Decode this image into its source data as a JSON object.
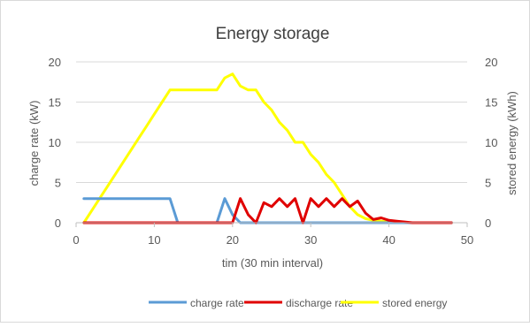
{
  "chart_data": {
    "type": "line",
    "title": "Energy storage",
    "xlabel": "tim (30 min interval)",
    "ylabel_left": "charge rate (kW)",
    "ylabel_right": "stored energy (kWh)",
    "xlim": [
      0,
      50
    ],
    "ylim_left": [
      0,
      20
    ],
    "ylim_right": [
      0,
      20
    ],
    "x_ticks": [
      0,
      10,
      20,
      30,
      40,
      50
    ],
    "y_ticks_left": [
      0,
      5,
      10,
      15,
      20
    ],
    "y_ticks_right": [
      0,
      5,
      10,
      15,
      20
    ],
    "grid": "horizontal",
    "legend_position": "bottom",
    "x": [
      1,
      2,
      3,
      4,
      5,
      6,
      7,
      8,
      9,
      10,
      11,
      12,
      13,
      14,
      15,
      16,
      17,
      18,
      19,
      20,
      21,
      22,
      23,
      24,
      25,
      26,
      27,
      28,
      29,
      30,
      31,
      32,
      33,
      34,
      35,
      36,
      37,
      38,
      39,
      40,
      41,
      42,
      43,
      44,
      45,
      46,
      47,
      48
    ],
    "series": [
      {
        "name": "charge rate",
        "axis": "left",
        "color": "#5B9BD5",
        "values": [
          3,
          3,
          3,
          3,
          3,
          3,
          3,
          3,
          3,
          3,
          3,
          3,
          0,
          0,
          0,
          0,
          0,
          0,
          3,
          1,
          0,
          0,
          0,
          0,
          0,
          0,
          0,
          0,
          0,
          0,
          0,
          0,
          0,
          0,
          0,
          0,
          0,
          0,
          0,
          0,
          0,
          0,
          0,
          0,
          0,
          0,
          0,
          0
        ]
      },
      {
        "name": "discharge rate",
        "axis": "left",
        "color": "#E00000",
        "values": [
          0,
          0,
          0,
          0,
          0,
          0,
          0,
          0,
          0,
          0,
          0,
          0,
          0,
          0,
          0,
          0,
          0,
          0,
          0,
          0,
          3,
          1,
          0,
          2.5,
          2,
          3,
          2,
          3,
          0,
          3,
          2,
          3,
          2,
          3,
          2,
          2.7,
          1.2,
          0.4,
          0.6,
          0.3,
          0.2,
          0.1,
          0,
          0,
          0,
          0,
          0,
          0
        ]
      },
      {
        "name": "stored energy",
        "axis": "right",
        "color": "#FFFF00",
        "values": [
          0,
          1.5,
          3,
          4.5,
          6,
          7.5,
          9,
          10.5,
          12,
          13.5,
          15,
          16.5,
          16.5,
          16.5,
          16.5,
          16.5,
          16.5,
          16.5,
          18,
          18.5,
          17,
          16.5,
          16.5,
          15,
          14,
          12.5,
          11.5,
          10,
          10,
          8.5,
          7.5,
          6,
          5,
          3.5,
          2,
          1,
          0.5,
          0.3,
          0.2,
          0.1,
          0.05,
          0,
          0,
          0,
          0,
          0,
          0,
          0
        ]
      }
    ]
  }
}
